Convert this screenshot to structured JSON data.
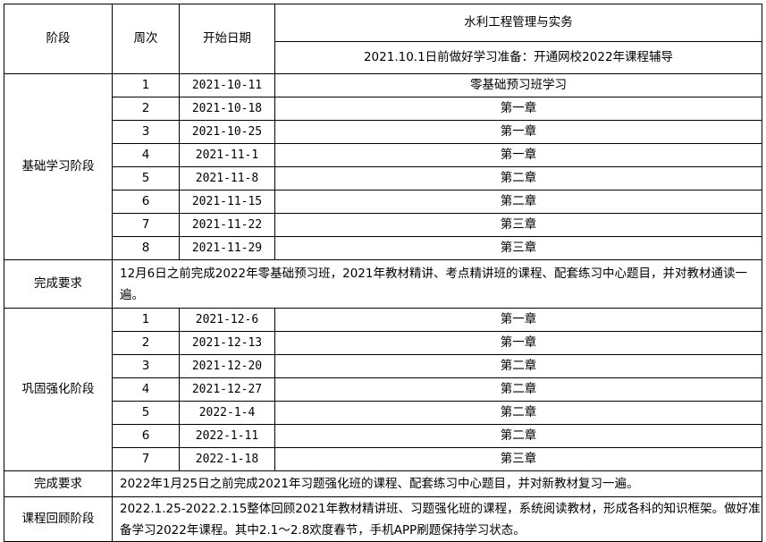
{
  "header": {
    "stage": "阶段",
    "week": "周次",
    "start_date": "开始日期",
    "subject": "水利工程管理与实务",
    "note": "2021.10.1日前做好学习准备：开通网校2022年课程辅导"
  },
  "sections": [
    {
      "stage": "基础学习阶段",
      "rows": [
        {
          "week": "1",
          "date": "2021-10-11",
          "content": "零基础预习班学习"
        },
        {
          "week": "2",
          "date": "2021-10-18",
          "content": "第一章"
        },
        {
          "week": "3",
          "date": "2021-10-25",
          "content": "第一章"
        },
        {
          "week": "4",
          "date": "2021-11-1",
          "content": "第一章"
        },
        {
          "week": "5",
          "date": "2021-11-8",
          "content": "第二章"
        },
        {
          "week": "6",
          "date": "2021-11-15",
          "content": "第二章"
        },
        {
          "week": "7",
          "date": "2021-11-22",
          "content": "第三章"
        },
        {
          "week": "8",
          "date": "2021-11-29",
          "content": "第三章"
        }
      ],
      "req_label": "完成要求",
      "req": "12月6日之前完成2022年零基础预习班，2021年教材精讲、考点精讲班的课程、配套练习中心题目，并对教材通读一遍。"
    },
    {
      "stage": "巩固强化阶段",
      "rows": [
        {
          "week": "1",
          "date": "2021-12-6",
          "content": "第一章"
        },
        {
          "week": "2",
          "date": "2021-12-13",
          "content": "第一章"
        },
        {
          "week": "3",
          "date": "2021-12-20",
          "content": "第二章"
        },
        {
          "week": "4",
          "date": "2021-12-27",
          "content": "第二章"
        },
        {
          "week": "5",
          "date": "2022-1-4",
          "content": "第二章"
        },
        {
          "week": "6",
          "date": "2022-1-11",
          "content": "第二章"
        },
        {
          "week": "7",
          "date": "2022-1-18",
          "content": "第三章"
        }
      ],
      "req_label": "完成要求",
      "req": "2022年1月25日之前完成2021年习题强化班的课程、配套练习中心题目，并对新教材复习一遍。"
    }
  ],
  "review": {
    "stage": "课程回顾阶段",
    "text": "2022.1.25-2022.2.15整体回顾2021年教材精讲班、习题强化班的课程，系统阅读教材，形成各科的知识框架。做好准备学习2022年课程。其中2.1～2.8欢度春节，手机APP刷题保持学习状态。"
  }
}
